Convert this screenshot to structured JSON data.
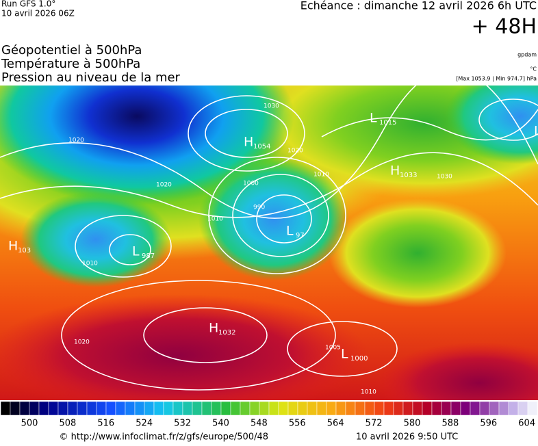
{
  "header": {
    "run": "Run GFS 1.0°",
    "date": "10 avril 2026 06Z",
    "echeance": "Echéance : dimanche 12 avril 2026 6h UTC",
    "lead": "+ 48H"
  },
  "titles": [
    "Géopotentiel à 500hPa",
    "Température à 500hPa",
    "Pression au niveau de la mer"
  ],
  "units": {
    "geopotential": "gpdam",
    "temperature": "°C",
    "pressure": "[Max 1053.9 | Min 974.7] hPa"
  },
  "centers": [
    {
      "letter": "L",
      "value": "1015"
    },
    {
      "letter": "H",
      "value": "1054"
    },
    {
      "letter": "H",
      "value": "1033"
    },
    {
      "letter": "L",
      "value": "97"
    },
    {
      "letter": "L",
      "value": "987"
    },
    {
      "letter": "H",
      "value": "103"
    },
    {
      "letter": "H",
      "value": "1032"
    },
    {
      "letter": "L",
      "value": "1000"
    },
    {
      "letter": "L",
      "value": ""
    }
  ],
  "isobar_labels": [
    "1030",
    "1020",
    "1020",
    "1010",
    "1000",
    "990",
    "1010",
    "1020",
    "1030",
    "1010",
    "1005",
    "1010",
    "1020"
  ],
  "scale": {
    "labels": [
      500,
      508,
      516,
      524,
      532,
      540,
      548,
      556,
      564,
      572,
      580,
      588,
      596,
      604
    ]
  },
  "footer": {
    "url": "© http://www.infoclimat.fr/z/gfs/europe/500/48",
    "time": "10 avril 2026  9:50 UTC"
  }
}
